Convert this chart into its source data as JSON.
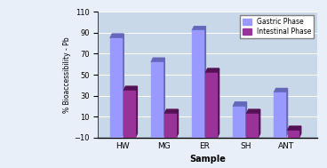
{
  "categories": [
    "HW",
    "MG",
    "ER",
    "SH",
    "ANT"
  ],
  "gastric": [
    85,
    62,
    92,
    20,
    33
  ],
  "intestinal": [
    35,
    13,
    52,
    13,
    -3
  ],
  "gastric_color": "#9999FF",
  "gastric_shadow": "#6666BB",
  "intestinal_color": "#993399",
  "intestinal_shadow": "#551155",
  "xlabel": "Sample",
  "ylabel": "% Bioaccessibility - Pb",
  "ylim": [
    -10,
    110
  ],
  "yticks": [
    -10,
    10,
    30,
    50,
    70,
    90,
    110
  ],
  "legend_gastric": "Gastric Phase",
  "legend_intestinal": "Intestinal Phase",
  "plot_bg": "#C8D8E8",
  "wall_bg": "#B0C4D8",
  "grid_color": "#FFFFFF",
  "fig_bg": "#E8EFF8"
}
